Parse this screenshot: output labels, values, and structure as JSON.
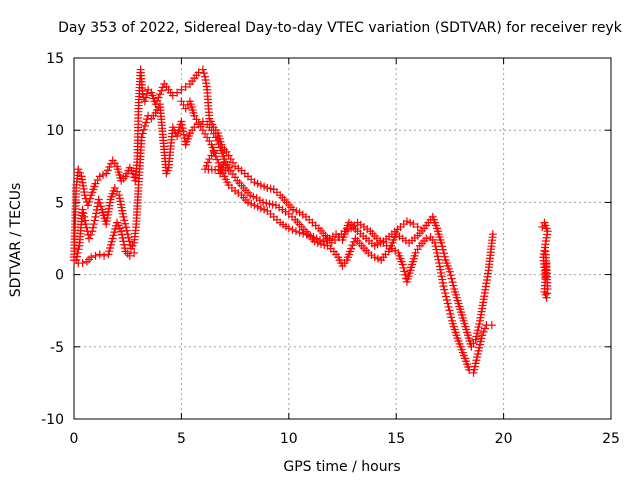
{
  "chart_data": {
    "type": "scatter",
    "title": "Day 353 of 2022, Sidereal Day-to-day VTEC variation (SDTVAR) for receiver reyk",
    "xlabel": "GPS time / hours",
    "ylabel": "SDTVAR / TECUs",
    "xlim": [
      0,
      25
    ],
    "ylim": [
      -10,
      15
    ],
    "xticks": [
      0,
      5,
      10,
      15,
      20,
      25
    ],
    "yticks": [
      -10,
      -5,
      0,
      5,
      10,
      15
    ],
    "grid": true,
    "marker": "plus",
    "color": "#ff0000",
    "series": [
      {
        "name": "A",
        "points": [
          [
            0,
            1.0
          ],
          [
            0.1,
            6.0
          ],
          [
            0.2,
            7.3
          ],
          [
            0.35,
            6.8
          ],
          [
            0.5,
            5.5
          ],
          [
            0.65,
            4.8
          ],
          [
            0.8,
            5.5
          ],
          [
            1.0,
            6.3
          ],
          [
            1.2,
            6.8
          ],
          [
            1.5,
            7.0
          ],
          [
            1.8,
            7.9
          ],
          [
            2.0,
            7.5
          ],
          [
            2.2,
            6.5
          ],
          [
            2.4,
            6.8
          ],
          [
            2.6,
            7.4
          ],
          [
            2.75,
            7.0
          ],
          [
            2.85,
            6.5
          ],
          [
            2.95,
            8.0
          ],
          [
            3.0,
            11.5
          ],
          [
            3.1,
            14.2
          ],
          [
            3.2,
            12.5
          ],
          [
            3.3,
            12.0
          ],
          [
            3.45,
            12.8
          ],
          [
            3.6,
            12.6
          ],
          [
            3.8,
            11.8
          ],
          [
            4.0,
            12.5
          ],
          [
            4.2,
            13.2
          ],
          [
            4.4,
            12.8
          ],
          [
            4.6,
            12.4
          ],
          [
            4.8,
            12.6
          ],
          [
            5.0,
            12.8
          ],
          [
            5.2,
            13.0
          ],
          [
            5.4,
            13.2
          ],
          [
            5.6,
            13.6
          ],
          [
            5.8,
            14.0
          ],
          [
            6.0,
            14.2
          ],
          [
            6.1,
            13.7
          ],
          [
            6.2,
            12.8
          ],
          [
            6.3,
            10.8
          ],
          [
            6.5,
            10.2
          ],
          [
            6.7,
            9.8
          ],
          [
            6.9,
            8.8
          ],
          [
            7.1,
            8.5
          ],
          [
            7.3,
            8.0
          ],
          [
            7.5,
            7.5
          ],
          [
            7.8,
            7.2
          ],
          [
            8.1,
            6.8
          ],
          [
            8.4,
            6.4
          ],
          [
            8.7,
            6.2
          ],
          [
            9.0,
            6.0
          ],
          [
            9.3,
            5.9
          ],
          [
            9.6,
            5.5
          ],
          [
            9.9,
            5.0
          ],
          [
            10.2,
            4.5
          ],
          [
            10.5,
            4.3
          ],
          [
            10.8,
            4.0
          ],
          [
            11.1,
            3.6
          ],
          [
            11.4,
            3.2
          ],
          [
            11.7,
            2.7
          ],
          [
            12.0,
            2.2
          ],
          [
            12.3,
            2.6
          ],
          [
            12.6,
            3.0
          ],
          [
            12.9,
            3.2
          ],
          [
            13.2,
            3.6
          ],
          [
            13.5,
            3.3
          ],
          [
            13.8,
            3.0
          ],
          [
            14.1,
            2.5
          ],
          [
            14.4,
            2.2
          ],
          [
            14.7,
            1.8
          ],
          [
            15.0,
            2.8
          ],
          [
            15.3,
            2.5
          ],
          [
            15.6,
            2.2
          ],
          [
            16.0,
            2.7
          ],
          [
            16.3,
            3.2
          ],
          [
            16.5,
            3.6
          ],
          [
            16.7,
            4.0
          ],
          [
            16.9,
            3.2
          ],
          [
            17.1,
            2.2
          ],
          [
            17.3,
            1.0
          ],
          [
            17.5,
            0.2
          ],
          [
            17.7,
            -1.0
          ],
          [
            17.9,
            -2.0
          ],
          [
            18.1,
            -3.0
          ],
          [
            18.3,
            -4.0
          ],
          [
            18.5,
            -5.0
          ],
          [
            18.7,
            -4.5
          ],
          [
            18.9,
            -3.2
          ],
          [
            19.1,
            -1.5
          ],
          [
            19.3,
            0.3
          ],
          [
            19.5,
            2.8
          ]
        ]
      },
      {
        "name": "B",
        "points": [
          [
            0.1,
            1.0
          ],
          [
            0.25,
            2.0
          ],
          [
            0.4,
            4.5
          ],
          [
            0.55,
            3.5
          ],
          [
            0.7,
            2.5
          ],
          [
            0.85,
            3.0
          ],
          [
            1.0,
            4.0
          ],
          [
            1.15,
            5.2
          ],
          [
            1.3,
            4.5
          ],
          [
            1.5,
            3.5
          ],
          [
            1.7,
            5.2
          ],
          [
            1.9,
            6.0
          ],
          [
            2.1,
            5.5
          ],
          [
            2.3,
            4.0
          ],
          [
            2.5,
            2.8
          ],
          [
            2.65,
            1.8
          ],
          [
            2.8,
            2.2
          ],
          [
            2.9,
            3.5
          ],
          [
            3.0,
            6.0
          ],
          [
            3.15,
            9.5
          ],
          [
            3.3,
            10.3
          ],
          [
            3.45,
            11.0
          ],
          [
            3.6,
            10.8
          ],
          [
            3.8,
            11.2
          ],
          [
            4.0,
            11.8
          ],
          [
            4.3,
            7.0
          ],
          [
            4.4,
            7.4
          ],
          [
            4.6,
            10.2
          ],
          [
            4.8,
            9.6
          ],
          [
            5.0,
            10.6
          ],
          [
            5.2,
            9.0
          ],
          [
            5.4,
            9.8
          ],
          [
            5.6,
            10.2
          ],
          [
            5.8,
            10.4
          ],
          [
            6.0,
            10.6
          ],
          [
            6.2,
            10.4
          ],
          [
            6.4,
            10.0
          ],
          [
            6.6,
            9.5
          ],
          [
            6.8,
            8.8
          ],
          [
            7.0,
            8.0
          ],
          [
            7.3,
            7.2
          ],
          [
            7.6,
            6.5
          ],
          [
            7.9,
            6.0
          ],
          [
            8.2,
            5.5
          ],
          [
            8.5,
            5.3
          ],
          [
            8.8,
            5.0
          ],
          [
            9.1,
            4.9
          ],
          [
            9.4,
            4.8
          ],
          [
            9.7,
            4.5
          ],
          [
            10.0,
            4.2
          ],
          [
            10.3,
            3.8
          ],
          [
            10.6,
            3.3
          ],
          [
            10.9,
            2.8
          ],
          [
            11.2,
            2.3
          ],
          [
            11.5,
            2.1
          ],
          [
            11.8,
            2.0
          ],
          [
            12.1,
            1.6
          ],
          [
            12.3,
            1.2
          ],
          [
            12.5,
            0.6
          ],
          [
            12.7,
            1.0
          ],
          [
            12.9,
            1.8
          ],
          [
            13.1,
            2.5
          ],
          [
            13.4,
            2.0
          ],
          [
            13.7,
            1.5
          ],
          [
            14.0,
            1.2
          ],
          [
            14.3,
            1.0
          ],
          [
            14.5,
            1.4
          ],
          [
            14.8,
            1.8
          ],
          [
            15.1,
            1.5
          ],
          [
            15.3,
            0.7
          ],
          [
            15.5,
            -0.5
          ],
          [
            15.7,
            0.5
          ],
          [
            15.9,
            1.5
          ],
          [
            16.1,
            2.0
          ],
          [
            16.4,
            2.5
          ],
          [
            16.6,
            2.6
          ],
          [
            16.8,
            2.2
          ],
          [
            17.0,
            0.8
          ],
          [
            17.2,
            -0.8
          ],
          [
            17.4,
            -2.0
          ],
          [
            17.6,
            -3.2
          ],
          [
            17.8,
            -4.2
          ],
          [
            18.0,
            -5.0
          ],
          [
            18.2,
            -5.8
          ],
          [
            18.4,
            -6.6
          ],
          [
            18.6,
            -6.8
          ],
          [
            18.8,
            -5.5
          ],
          [
            19.0,
            -4.2
          ],
          [
            19.2,
            -3.5
          ],
          [
            19.45,
            -3.5
          ]
        ]
      },
      {
        "name": "C",
        "points": [
          [
            0.2,
            0.8
          ],
          [
            0.4,
            0.8
          ],
          [
            0.6,
            0.9
          ],
          [
            0.8,
            1.2
          ],
          [
            1.0,
            1.3
          ],
          [
            1.2,
            1.4
          ],
          [
            1.4,
            1.3
          ],
          [
            1.6,
            1.4
          ],
          [
            2.0,
            3.6
          ],
          [
            2.2,
            3.0
          ],
          [
            2.4,
            1.6
          ],
          [
            2.6,
            1.3
          ],
          [
            2.8,
            1.5
          ],
          [
            5.0,
            12.0
          ],
          [
            5.2,
            11.5
          ],
          [
            5.4,
            12.0
          ],
          [
            5.6,
            11.0
          ],
          [
            5.8,
            10.5
          ],
          [
            6.0,
            10.0
          ],
          [
            6.2,
            9.5
          ],
          [
            6.4,
            9.0
          ],
          [
            6.6,
            8.2
          ],
          [
            6.8,
            7.5
          ],
          [
            7.0,
            6.8
          ],
          [
            7.2,
            6.2
          ],
          [
            7.5,
            5.8
          ],
          [
            7.8,
            5.5
          ],
          [
            8.1,
            5.0
          ],
          [
            8.4,
            4.8
          ],
          [
            8.7,
            4.6
          ],
          [
            9.0,
            4.4
          ],
          [
            9.3,
            4.0
          ],
          [
            9.6,
            3.6
          ],
          [
            10.0,
            3.2
          ],
          [
            10.5,
            2.9
          ],
          [
            11.0,
            2.7
          ],
          [
            11.3,
            2.5
          ],
          [
            11.6,
            2.3
          ],
          [
            11.9,
            2.5
          ],
          [
            12.2,
            2.8
          ],
          [
            12.5,
            2.4
          ],
          [
            12.8,
            3.6
          ],
          [
            13.2,
            3.0
          ],
          [
            13.6,
            2.5
          ],
          [
            14.0,
            2.0
          ],
          [
            14.4,
            2.3
          ],
          [
            14.8,
            2.8
          ],
          [
            15.2,
            3.3
          ],
          [
            15.5,
            3.7
          ],
          [
            15.8,
            3.5
          ],
          [
            16.0,
            3.3
          ],
          [
            6.8,
            7.0
          ],
          [
            7.0,
            7.8
          ],
          [
            7.2,
            7.2
          ],
          [
            6.1,
            7.3
          ],
          [
            6.3,
            8.0
          ],
          [
            6.5,
            8.5
          ]
        ]
      },
      {
        "name": "D",
        "points": [
          [
            21.8,
            3.3
          ],
          [
            21.9,
            3.6
          ],
          [
            22.0,
            3.2
          ],
          [
            22.05,
            3.0
          ],
          [
            21.85,
            1.2
          ],
          [
            21.9,
            0.5
          ],
          [
            21.95,
            -0.2
          ],
          [
            22.0,
            0.8
          ],
          [
            21.9,
            -1.2
          ],
          [
            22.0,
            -1.6
          ],
          [
            22.05,
            -1.0
          ],
          [
            21.95,
            1.6
          ]
        ]
      }
    ]
  }
}
